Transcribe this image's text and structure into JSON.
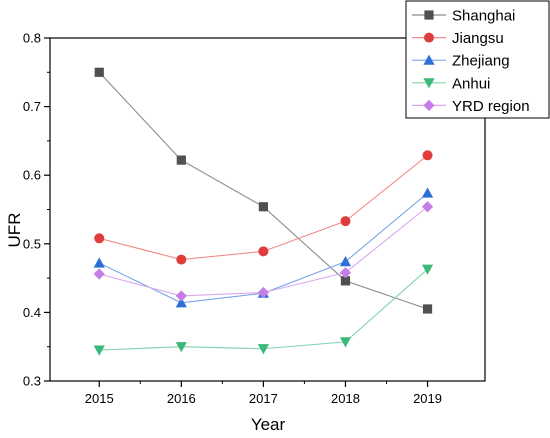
{
  "chart_data": {
    "type": "line",
    "xlabel": "Year",
    "ylabel": "UFR",
    "x": [
      2015,
      2016,
      2017,
      2018,
      2019
    ],
    "xlim": [
      2014.4,
      2019.7
    ],
    "ylim": [
      0.3,
      0.8
    ],
    "xticks": [
      2015,
      2016,
      2017,
      2018,
      2019
    ],
    "yticks": [
      0.3,
      0.4,
      0.5,
      0.6,
      0.7,
      0.8
    ],
    "grid": false,
    "legend_position": "top-right",
    "series": [
      {
        "name": "Shanghai",
        "values": [
          0.75,
          0.622,
          0.554,
          0.446,
          0.405
        ],
        "color": "#505050",
        "line_color": "#8c8c8c",
        "marker": "square"
      },
      {
        "name": "Jiangsu",
        "values": [
          0.508,
          0.477,
          0.489,
          0.533,
          0.629
        ],
        "color": "#e03c3c",
        "line_color": "#f28a8a",
        "marker": "circle"
      },
      {
        "name": "Zhejiang",
        "values": [
          0.472,
          0.414,
          0.428,
          0.474,
          0.574
        ],
        "color": "#2d6fd6",
        "line_color": "#7aa6ea",
        "marker": "triangle-up"
      },
      {
        "name": "Anhui",
        "values": [
          0.345,
          0.35,
          0.347,
          0.357,
          0.463
        ],
        "color": "#3cb879",
        "line_color": "#82d4aa",
        "marker": "triangle-down"
      },
      {
        "name": "YRD region",
        "values": [
          0.456,
          0.424,
          0.429,
          0.458,
          0.554
        ],
        "color": "#c47ee6",
        "line_color": "#d9a8ef",
        "marker": "diamond"
      }
    ]
  }
}
